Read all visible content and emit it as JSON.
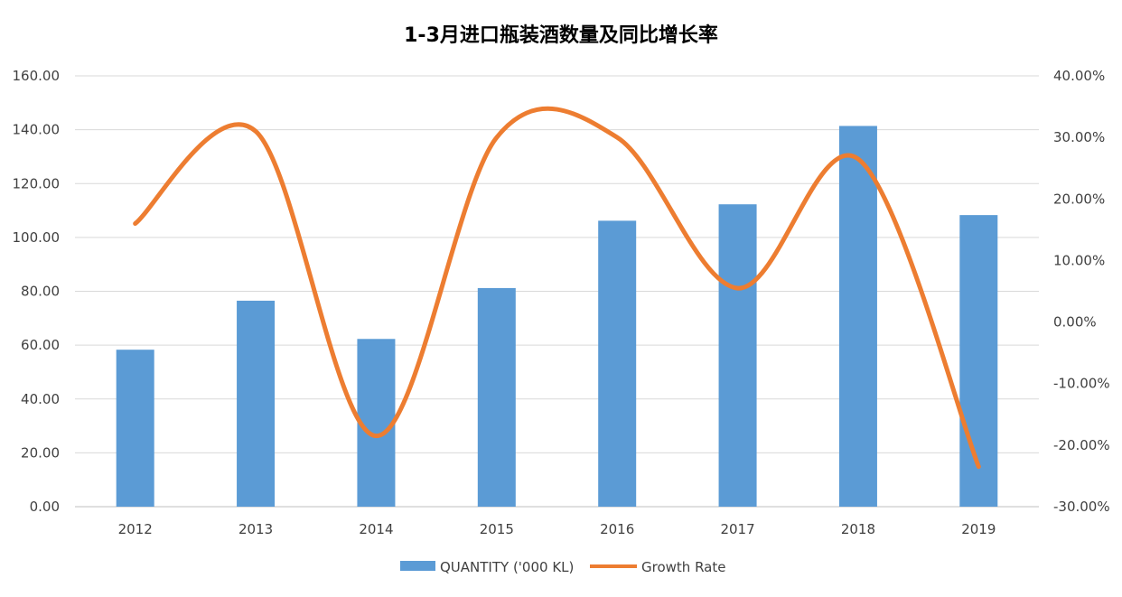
{
  "chart_data": {
    "type": "bar",
    "title": "1-3月进口瓶装酒数量及同比增长率",
    "categories": [
      "2012",
      "2013",
      "2014",
      "2015",
      "2016",
      "2017",
      "2018",
      "2019"
    ],
    "series": [
      {
        "name": "QUANTITY ('000 KL)",
        "type": "bar",
        "axis": "left",
        "color": "#5B9BD5",
        "values": [
          58.3,
          76.5,
          62.3,
          81.2,
          106.2,
          112.3,
          141.4,
          108.3
        ]
      },
      {
        "name": "Growth Rate",
        "type": "line",
        "smooth": true,
        "axis": "right",
        "color": "#ED7D31",
        "values": [
          16.0,
          31.0,
          -18.5,
          30.0,
          30.0,
          5.5,
          26.5,
          -23.5
        ]
      }
    ],
    "y_left": {
      "range": [
        0,
        160
      ],
      "ticks": [
        "0.00",
        "20.00",
        "40.00",
        "60.00",
        "80.00",
        "100.00",
        "120.00",
        "140.00",
        "160.00"
      ]
    },
    "y_right": {
      "range": [
        -30,
        40
      ],
      "unit": "%",
      "ticks": [
        "-30.00%",
        "-20.00%",
        "-10.00%",
        "0.00%",
        "10.00%",
        "20.00%",
        "30.00%",
        "40.00%"
      ]
    },
    "grid": true,
    "legend_position": "bottom"
  }
}
